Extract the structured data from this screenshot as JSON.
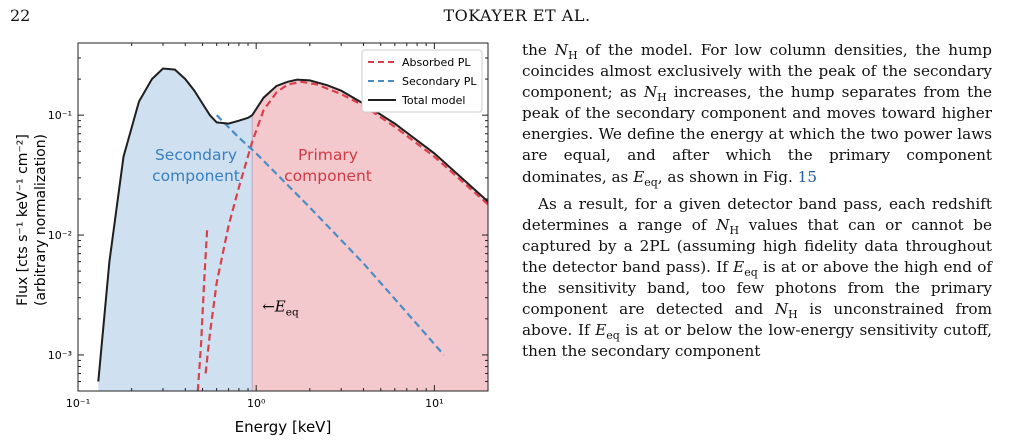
{
  "header": {
    "page_number": "22",
    "running_head": "TOKAYER ET AL."
  },
  "chart_data": {
    "type": "line",
    "log_x": true,
    "log_y": true,
    "xlim": [
      0.1,
      20
    ],
    "ylim": [
      0.0005,
      0.4
    ],
    "x_tick_labels": [
      "10⁻¹",
      "10⁰",
      "10¹"
    ],
    "y_tick_labels": [
      "10⁻³",
      "10⁻²",
      "10⁻¹"
    ],
    "xlabel": "Energy [keV]",
    "ylabel_line1": "Flux [cts s⁻¹ keV⁻¹ cm⁻²]",
    "ylabel_line2": "(arbitrary normalization)",
    "legend_position": "top-right",
    "colors": {
      "absorbed": "#d9404a",
      "secondary": "#4a8cc4",
      "total": "#1f1f1f",
      "secondary_fill": "#cfe0f0",
      "primary_fill": "#f4c9cd"
    },
    "series": [
      {
        "name": "Absorbed PL",
        "style": "dashed",
        "color": "#d9404a",
        "x": [
          0.52,
          0.55,
          0.6,
          0.7,
          0.8,
          0.95,
          1.1,
          1.3,
          1.5,
          1.8,
          2.2,
          3,
          4,
          6,
          10,
          20
        ],
        "y": [
          0.0007,
          0.0015,
          0.004,
          0.012,
          0.025,
          0.06,
          0.11,
          0.155,
          0.18,
          0.19,
          0.18,
          0.15,
          0.12,
          0.08,
          0.045,
          0.018
        ]
      },
      {
        "name": "Secondary PL",
        "style": "dashed",
        "color": "#4a8cc4",
        "x": [
          0.6,
          0.8,
          1,
          2,
          4,
          8,
          11.3
        ],
        "y": [
          0.1,
          0.065,
          0.048,
          0.017,
          0.0058,
          0.0018,
          0.001
        ]
      },
      {
        "name": "Total model",
        "style": "solid",
        "color": "#1f1f1f",
        "x": [
          0.13,
          0.15,
          0.18,
          0.22,
          0.26,
          0.3,
          0.35,
          0.4,
          0.45,
          0.5,
          0.55,
          0.6,
          0.7,
          0.8,
          0.9,
          0.95,
          1.1,
          1.3,
          1.5,
          1.7,
          2,
          2.5,
          3,
          4,
          6,
          10,
          20
        ],
        "y": [
          0.0006,
          0.006,
          0.045,
          0.13,
          0.2,
          0.245,
          0.24,
          0.2,
          0.16,
          0.125,
          0.1,
          0.087,
          0.085,
          0.09,
          0.095,
          0.1,
          0.14,
          0.175,
          0.19,
          0.198,
          0.195,
          0.178,
          0.16,
          0.125,
          0.085,
          0.048,
          0.019
        ]
      }
    ],
    "annotations": {
      "secondary_label": [
        "Secondary",
        "component"
      ],
      "primary_label": [
        "Primary",
        "component"
      ],
      "e_eq_arrow": "←",
      "e_eq_symbol": "E",
      "e_eq_subscript": "eq",
      "e_eq_value": 0.95
    }
  },
  "text": {
    "p1_a": "the ",
    "p1_b": " of the model. For low column densities, the hump coincides almost exclusively with the peak of the secondary component; as ",
    "p1_c": " increases, the hump separates from the peak of the secondary component and moves toward higher energies. We define the energy at which the two power laws are equal, and after which the primary component dominates, as ",
    "p1_d": ", as shown in Fig. ",
    "p1_ref": "15",
    "p2_a": "As a result, for a given detector band pass, each redshift determines a range of ",
    "p2_b": " values that can or cannot be captured by a 2PL (assuming high fidelity data throughout the detector band pass). If ",
    "p2_c": " is at or above the high end of the sensitivity band, too few photons from the primary component are detected and ",
    "p2_d": " is unconstrained from above. If ",
    "p2_e": " is at or below the low-energy sensitivity cutoff, then the secondary component",
    "nh_symbol": "N",
    "nh_sub": "H",
    "eeq_symbol": "E",
    "eeq_sub": "eq"
  }
}
